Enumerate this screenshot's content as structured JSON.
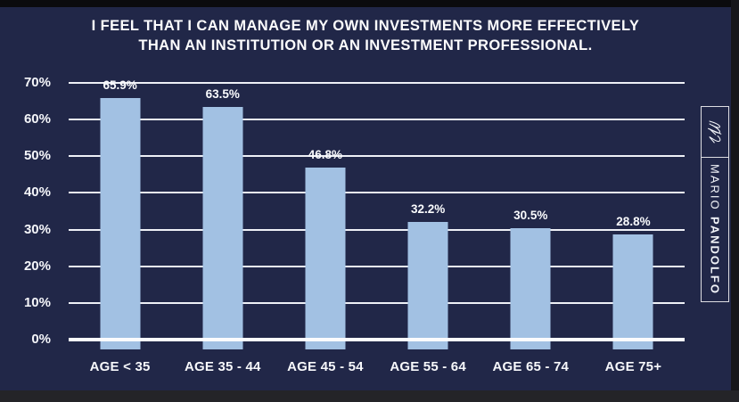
{
  "title": {
    "line1": "I FEEL THAT I CAN MANAGE MY OWN INVESTMENTS MORE EFFECTIVELY",
    "line2": "THAN AN INSTITUTION OR AN INVESTMENT PROFESSIONAL."
  },
  "chart_data": {
    "type": "bar",
    "title": "I FEEL THAT I CAN MANAGE MY OWN INVESTMENTS MORE EFFECTIVELY THAN AN INSTITUTION OR AN INVESTMENT PROFESSIONAL.",
    "categories": [
      "AGE < 35",
      "AGE 35 - 44",
      "AGE 45 - 54",
      "AGE 55 - 64",
      "AGE 65 - 74",
      "AGE 75+"
    ],
    "values": [
      65.9,
      63.5,
      46.8,
      32.2,
      30.5,
      28.8
    ],
    "value_labels": [
      "65.9%",
      "63.5%",
      "46.8%",
      "32.2%",
      "30.5%",
      "28.8%"
    ],
    "y_ticks": [
      "70%",
      "60%",
      "50%",
      "40%",
      "30%",
      "20%",
      "10%",
      "0%"
    ],
    "xlabel": "",
    "ylabel": "",
    "ylim": [
      0,
      70
    ],
    "grid": "horizontal",
    "legend": "none",
    "bar_color": "#a2c1e3",
    "background_color": "#212748"
  },
  "badge": {
    "signature_icon": "handwritten-signature",
    "first_name": "MARIO",
    "last_name": "PANDOLFO"
  },
  "colors": {
    "panel_navy": "#212748",
    "bar_blue": "#a2c1e3",
    "gridline_white": "#eef0f6",
    "text_white": "#fdfdfe",
    "frame_black": "#0b0b0e"
  }
}
